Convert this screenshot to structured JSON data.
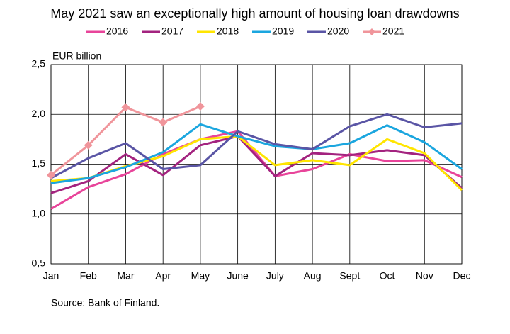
{
  "chart_data": {
    "type": "line",
    "title": "May 2021 saw an exceptionally high amount of housing loan drawdowns",
    "y_label": "EUR billion",
    "source": "Source: Bank of Finland.",
    "categories": [
      "Jan",
      "Feb",
      "Mar",
      "Apr",
      "May",
      "June",
      "July",
      "Aug",
      "Sept",
      "Oct",
      "Nov",
      "Dec"
    ],
    "series": [
      {
        "name": "2016",
        "color": "#e8449a",
        "values": [
          1.05,
          1.27,
          1.4,
          1.6,
          1.75,
          1.83,
          1.38,
          1.45,
          1.6,
          1.53,
          1.54,
          1.37
        ]
      },
      {
        "name": "2017",
        "color": "#a3237f",
        "values": [
          1.21,
          1.33,
          1.6,
          1.39,
          1.69,
          1.78,
          1.38,
          1.61,
          1.59,
          1.64,
          1.59,
          1.26
        ]
      },
      {
        "name": "2018",
        "color": "#ffe500",
        "values": [
          1.33,
          1.36,
          1.48,
          1.58,
          1.75,
          1.78,
          1.49,
          1.54,
          1.49,
          1.75,
          1.61,
          1.24
        ]
      },
      {
        "name": "2019",
        "color": "#1ba6df",
        "values": [
          1.31,
          1.36,
          1.47,
          1.62,
          1.9,
          1.78,
          1.68,
          1.65,
          1.71,
          1.89,
          1.72,
          1.45
        ]
      },
      {
        "name": "2020",
        "color": "#5a55a5",
        "values": [
          1.36,
          1.56,
          1.71,
          1.45,
          1.49,
          1.83,
          1.7,
          1.65,
          1.88,
          2.0,
          1.87,
          1.91
        ]
      },
      {
        "name": "2021",
        "color": "#f0959b",
        "marker": "diamond",
        "values": [
          1.39,
          1.69,
          2.07,
          1.92,
          2.08,
          null,
          null,
          null,
          null,
          null,
          null,
          null
        ]
      }
    ],
    "ylim": [
      0.5,
      2.5
    ],
    "yticks": [
      {
        "value": 0.5,
        "label": "0,5"
      },
      {
        "value": 1,
        "label": "1,0"
      },
      {
        "value": 1.5,
        "label": "1,5"
      },
      {
        "value": 2,
        "label": "2,0"
      },
      {
        "value": 2.5,
        "label": "2,5"
      }
    ],
    "grid": true
  }
}
